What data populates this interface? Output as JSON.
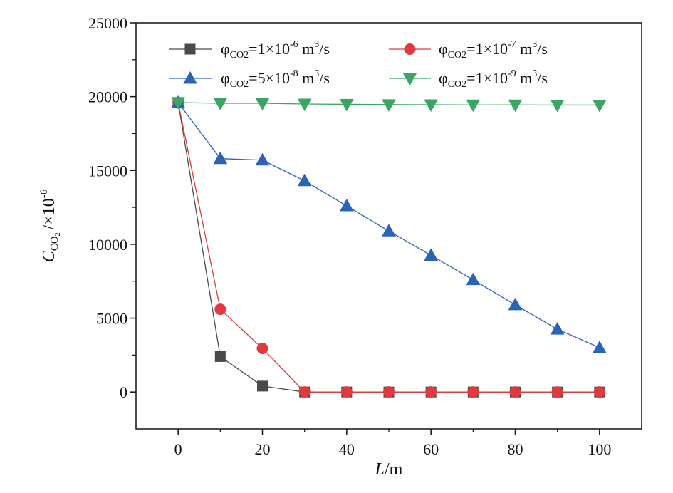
{
  "chart_data": {
    "type": "line",
    "xlabel_italic": "L",
    "xlabel_rest": "/m",
    "ylabel_italic": "C",
    "ylabel_sub": "CO",
    "ylabel_subsub": "2",
    "ylabel_rest": "/×10",
    "ylabel_exp": "-6",
    "xlim": [
      -10,
      110
    ],
    "ylim": [
      -2500,
      25000
    ],
    "xticks": [
      0,
      20,
      40,
      60,
      80,
      100
    ],
    "yticks": [
      0,
      5000,
      10000,
      15000,
      20000,
      25000
    ],
    "x": [
      0,
      10,
      20,
      30,
      40,
      50,
      60,
      70,
      80,
      90,
      100
    ],
    "grid": false,
    "legend_position": "top",
    "series": [
      {
        "name": "φCO2=1×10-6 m3/s",
        "legend": {
          "phi": "φ",
          "sub": "CO2",
          "mid": "=1×10",
          "exp": "-6",
          "unit_a": " m",
          "unit_exp": "3",
          "unit_b": "/s"
        },
        "color": "#4a4a4a",
        "marker": "square",
        "values": [
          19600,
          2400,
          400,
          0,
          0,
          0,
          0,
          0,
          0,
          0,
          0
        ]
      },
      {
        "name": "φCO2=1×10-7 m3/s",
        "legend": {
          "phi": "φ",
          "sub": "CO2",
          "mid": "=1×10",
          "exp": "-7",
          "unit_a": " m",
          "unit_exp": "3",
          "unit_b": "/s"
        },
        "color": "#e03a3e",
        "marker": "circle",
        "values": [
          19600,
          5600,
          2950,
          0,
          0,
          0,
          0,
          0,
          0,
          0,
          0
        ]
      },
      {
        "name": "φCO2=5×10-8 m3/s",
        "legend": {
          "phi": "φ",
          "sub": "CO2",
          "mid": "=5×10",
          "exp": "-8",
          "unit_a": " m",
          "unit_exp": "3",
          "unit_b": "/s"
        },
        "color": "#2a63b8",
        "marker": "triangle-up",
        "values": [
          19600,
          15800,
          15700,
          14300,
          12600,
          10900,
          9250,
          7600,
          5900,
          4250,
          3000
        ]
      },
      {
        "name": "φCO2=1×10-9 m3/s",
        "legend": {
          "phi": "φ",
          "sub": "CO2",
          "mid": "=1×10",
          "exp": "-9",
          "unit_a": " m",
          "unit_exp": "3",
          "unit_b": "/s"
        },
        "color": "#3aa564",
        "marker": "triangle-down",
        "values": [
          19600,
          19550,
          19550,
          19500,
          19480,
          19460,
          19450,
          19440,
          19440,
          19430,
          19430
        ]
      }
    ]
  }
}
